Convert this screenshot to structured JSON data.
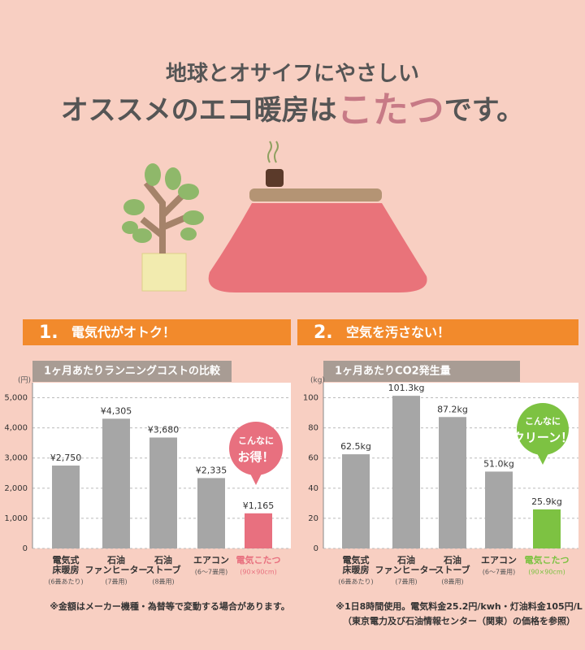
{
  "header": {
    "line1": "地球とオサイフにやさしい",
    "line2_pre": "オススメのエコ暖房は",
    "line2_em": "こたつ",
    "line2_post": "です。"
  },
  "sections": [
    {
      "number": "1.",
      "title": "電気代がオトク！"
    },
    {
      "number": "2.",
      "title": "空気を汚さない！"
    }
  ],
  "chart_data": [
    {
      "type": "bar",
      "title": "1ヶ月あたりランニングコストの比較",
      "y_unit": "(円)",
      "categories": [
        [
          "電気式",
          "床暖房"
        ],
        [
          "石油",
          "ファンヒーター"
        ],
        [
          "石油",
          "ストーブ"
        ],
        [
          "エアコン"
        ],
        [
          "電気こたつ"
        ]
      ],
      "sublabels": [
        "(6畳あたり)",
        "(7畳用)",
        "(8畳用)",
        "(6～7畳用)",
        "(90×90cm)"
      ],
      "values": [
        2750,
        4305,
        3680,
        2335,
        1165
      ],
      "value_labels": [
        "¥2,750",
        "¥4,305",
        "¥3,680",
        "¥2,335",
        "¥1,165"
      ],
      "colors": [
        "#a6a6a6",
        "#a6a6a6",
        "#a6a6a6",
        "#a6a6a6",
        "#e8707f"
      ],
      "ylim": [
        0,
        5500
      ],
      "yticks": [
        0,
        {
          "value": 1000,
          "label": "1,000"
        },
        {
          "value": 2000,
          "label": "2,000"
        },
        {
          "value": 3000,
          "label": "3,000"
        },
        {
          "value": 4000,
          "label": "4,000"
        },
        {
          "value": 5000,
          "label": "5,000"
        }
      ],
      "grid": true,
      "callout": [
        "こんなに",
        "お得！"
      ],
      "callout_color": "#e8707f",
      "note": [
        "※金額はメーカー機種・為替等で変動する場合があります。"
      ]
    },
    {
      "type": "bar",
      "title": "1ヶ月あたりCO2発生量",
      "y_unit": "(kg)",
      "categories": [
        [
          "電気式",
          "床暖房"
        ],
        [
          "石油",
          "ファンヒーター"
        ],
        [
          "石油",
          "ストーブ"
        ],
        [
          "エアコン"
        ],
        [
          "電気こたつ"
        ]
      ],
      "sublabels": [
        "(6畳あたり)",
        "(7畳用)",
        "(8畳用)",
        "(6～7畳用)",
        "(90×90cm)"
      ],
      "values": [
        62.5,
        101.3,
        87.2,
        51.0,
        25.9
      ],
      "value_labels": [
        "62.5kg",
        "101.3kg",
        "87.2kg",
        "51.0kg",
        "25.9kg"
      ],
      "colors": [
        "#a6a6a6",
        "#a6a6a6",
        "#a6a6a6",
        "#a6a6a6",
        "#7dc242"
      ],
      "ylim": [
        0,
        110
      ],
      "yticks": [
        0,
        20,
        40,
        60,
        80,
        100
      ],
      "grid": true,
      "callout": [
        "こんなに",
        "クリーン！"
      ],
      "callout_color": "#7dc242",
      "note": [
        "※1日8時間使用。電気料金25.2円/kwh・灯油料金105円/L",
        "（東京電力及び石油情報センター（関東）の価格を参照）"
      ]
    }
  ]
}
